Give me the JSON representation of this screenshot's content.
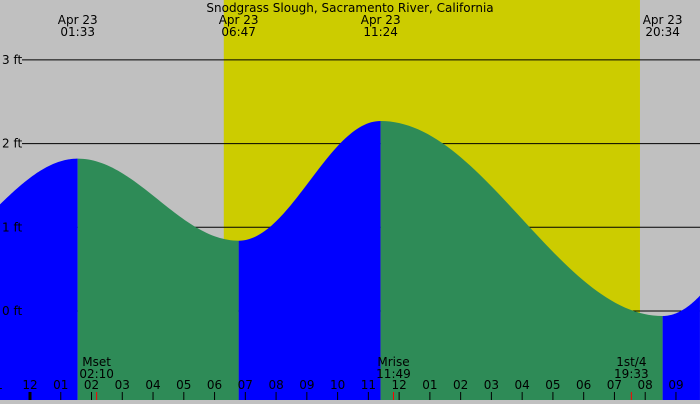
{
  "chart_data": {
    "type": "area",
    "title": "Snodgrass Slough, Sacramento River, California",
    "y_unit": "ft",
    "ylim": [
      -1.07,
      3.72
    ],
    "y_ticks": [
      0,
      1,
      2,
      3
    ],
    "y_tick_labels": [
      "0 ft",
      "1 ft",
      "2 ft",
      "3 ft"
    ],
    "x_range_hours": [
      -0.98,
      21.78
    ],
    "x_tick_labels": [
      "1",
      "12",
      "01",
      "02",
      "03",
      "04",
      "05",
      "06",
      "07",
      "08",
      "09",
      "10",
      "11",
      "12",
      "01",
      "02",
      "03",
      "04",
      "05",
      "06",
      "07",
      "08",
      "09"
    ],
    "x_tick_hours": [
      -1,
      0,
      1,
      2,
      3,
      4,
      5,
      6,
      7,
      8,
      9,
      10,
      11,
      12,
      13,
      14,
      15,
      16,
      17,
      18,
      19,
      20,
      21
    ],
    "tide_events": [
      {
        "date": "Apr 23",
        "time": "01:33",
        "type": "high",
        "height_ft": 1.82
      },
      {
        "date": "Apr 23",
        "time": "06:47",
        "type": "low",
        "height_ft": 0.84
      },
      {
        "date": "Apr 23",
        "time": "11:24",
        "type": "high",
        "height_ft": 2.27
      },
      {
        "date": "Apr 23",
        "time": "20:34",
        "type": "low",
        "height_ft": -0.06
      }
    ],
    "daylight": {
      "start_hour": 6.3,
      "end_hour": 19.83
    },
    "moon_events": [
      {
        "label": "Mset",
        "time": "02:10"
      },
      {
        "label": "Mrise",
        "time": "11:49"
      },
      {
        "label": "1st/4",
        "time": "19:33"
      }
    ],
    "grid": true,
    "colors": {
      "night": "#c0c0c0",
      "day": "#cccc00",
      "rising": "#0000ff",
      "falling": "#2e8b57",
      "moon_marker": "#ff0000"
    }
  }
}
